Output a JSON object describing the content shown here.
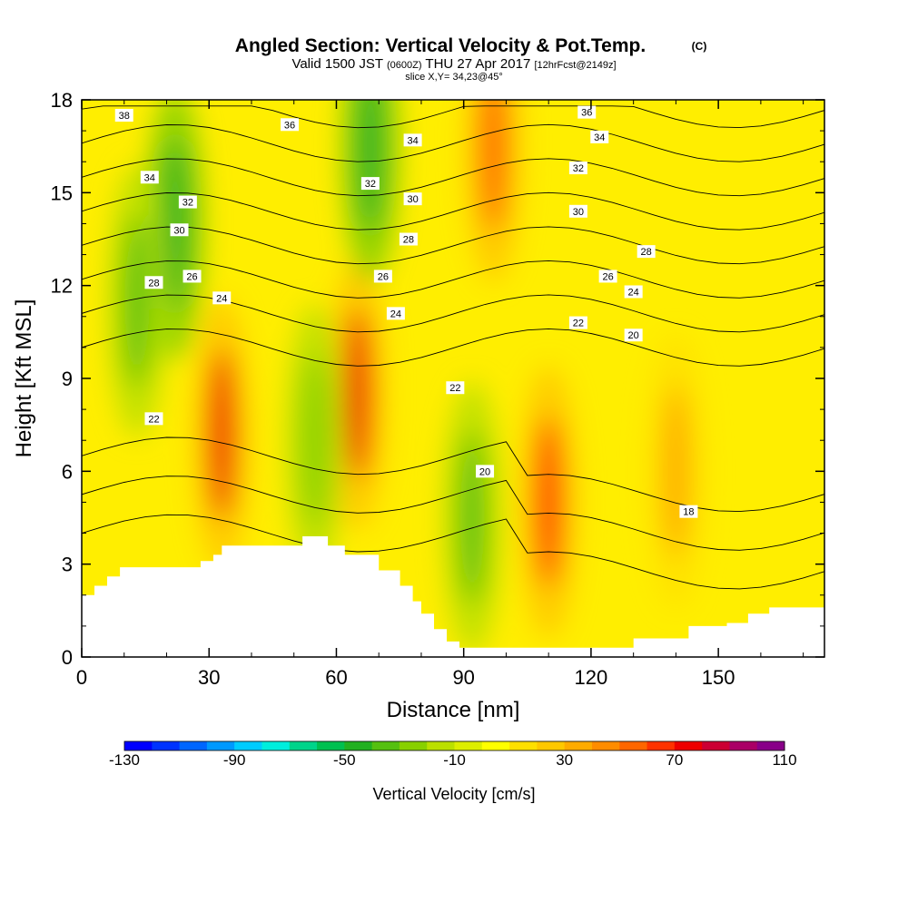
{
  "chart_data": {
    "type": "heatmap",
    "title": "Angled Section: Vertical Velocity & Pot.Temp.",
    "title_units": "(C)",
    "subtitle": {
      "prefix": "Valid 1500 JST",
      "utc": "(0600Z)",
      "date": "THU 27 Apr 2017",
      "forecast": "[12hrFcst@2149z]"
    },
    "slice_label": "slice X,Y= 34,23@45°",
    "xlabel": "Distance [nm]",
    "ylabel": "Height [Kft MSL]",
    "xlim": [
      0,
      175
    ],
    "ylim": [
      0,
      18
    ],
    "x_ticks": [
      0,
      30,
      60,
      90,
      120,
      150
    ],
    "y_ticks": [
      0,
      3,
      6,
      9,
      12,
      15,
      18
    ],
    "grid": false,
    "legend_position": "bottom",
    "colorbar": {
      "label": "Vertical Velocity [cm/s]",
      "min": -130,
      "max": 110,
      "step": 10,
      "tick_labels": [
        -130,
        -90,
        -50,
        -10,
        30,
        70,
        110
      ],
      "colors": [
        "#0000ff",
        "#0033ff",
        "#0066ff",
        "#0099ff",
        "#00ccff",
        "#00eedd",
        "#00d48a",
        "#00c050",
        "#22b020",
        "#55c010",
        "#88d000",
        "#bbe000",
        "#ddee00",
        "#ffff00",
        "#ffe000",
        "#ffc800",
        "#ffab00",
        "#ff8c00",
        "#ff6600",
        "#ff3300",
        "#ee0000",
        "#cc0033",
        "#aa0066",
        "#880088"
      ]
    },
    "vertical_velocity_cores": [
      {
        "x": 33,
        "z": 7.2,
        "w": 70
      },
      {
        "x": 65,
        "z": 8.5,
        "w": 70
      },
      {
        "x": 110,
        "z": 5.0,
        "w": 60
      },
      {
        "x": 97,
        "z": 16.5,
        "w": 50
      },
      {
        "x": 140,
        "z": 6.0,
        "w": 30
      },
      {
        "x": 22,
        "z": 14.0,
        "w": -45
      },
      {
        "x": 68,
        "z": 16.5,
        "w": -45
      },
      {
        "x": 92,
        "z": 4.5,
        "w": -40
      },
      {
        "x": 55,
        "z": 7.0,
        "w": -30
      },
      {
        "x": 13,
        "z": 11.5,
        "w": -40
      }
    ],
    "potential_temperature_labels": [
      {
        "x": 10,
        "z": 17.5,
        "text": "38"
      },
      {
        "x": 49,
        "z": 17.2,
        "text": "36"
      },
      {
        "x": 119,
        "z": 17.6,
        "text": "36"
      },
      {
        "x": 78,
        "z": 16.7,
        "text": "34"
      },
      {
        "x": 122,
        "z": 16.8,
        "text": "34"
      },
      {
        "x": 16,
        "z": 15.5,
        "text": "34"
      },
      {
        "x": 68,
        "z": 15.3,
        "text": "32"
      },
      {
        "x": 117,
        "z": 15.8,
        "text": "32"
      },
      {
        "x": 25,
        "z": 14.7,
        "text": "32"
      },
      {
        "x": 78,
        "z": 14.8,
        "text": "30"
      },
      {
        "x": 117,
        "z": 14.4,
        "text": "30"
      },
      {
        "x": 23,
        "z": 13.8,
        "text": "30"
      },
      {
        "x": 77,
        "z": 13.5,
        "text": "28"
      },
      {
        "x": 133,
        "z": 13.1,
        "text": "28"
      },
      {
        "x": 17,
        "z": 12.1,
        "text": "28"
      },
      {
        "x": 26,
        "z": 12.3,
        "text": "26"
      },
      {
        "x": 71,
        "z": 12.3,
        "text": "26"
      },
      {
        "x": 124,
        "z": 12.3,
        "text": "26"
      },
      {
        "x": 33,
        "z": 11.6,
        "text": "24"
      },
      {
        "x": 74,
        "z": 11.1,
        "text": "24"
      },
      {
        "x": 130,
        "z": 11.8,
        "text": "24"
      },
      {
        "x": 117,
        "z": 10.8,
        "text": "22"
      },
      {
        "x": 88,
        "z": 8.7,
        "text": "22"
      },
      {
        "x": 17,
        "z": 7.7,
        "text": "22"
      },
      {
        "x": 130,
        "z": 10.4,
        "text": "20"
      },
      {
        "x": 95,
        "z": 6.0,
        "text": "20"
      },
      {
        "x": 143,
        "z": 4.7,
        "text": "18"
      }
    ],
    "terrain": [
      [
        0,
        2
      ],
      [
        3,
        2
      ],
      [
        3,
        2.3
      ],
      [
        6,
        2.3
      ],
      [
        6,
        2.6
      ],
      [
        9,
        2.6
      ],
      [
        9,
        2.9
      ],
      [
        28,
        2.9
      ],
      [
        28,
        3.1
      ],
      [
        31,
        3.1
      ],
      [
        31,
        3.3
      ],
      [
        33,
        3.3
      ],
      [
        33,
        3.6
      ],
      [
        52,
        3.6
      ],
      [
        52,
        3.9
      ],
      [
        58,
        3.9
      ],
      [
        58,
        3.6
      ],
      [
        62,
        3.6
      ],
      [
        62,
        3.3
      ],
      [
        70,
        3.3
      ],
      [
        70,
        2.8
      ],
      [
        75,
        2.8
      ],
      [
        75,
        2.3
      ],
      [
        78,
        2.3
      ],
      [
        78,
        1.8
      ],
      [
        80,
        1.8
      ],
      [
        80,
        1.4
      ],
      [
        83,
        1.4
      ],
      [
        83,
        0.9
      ],
      [
        86,
        0.9
      ],
      [
        86,
        0.5
      ],
      [
        89,
        0.5
      ],
      [
        89,
        0.3
      ],
      [
        130,
        0.3
      ],
      [
        130,
        0.6
      ],
      [
        143,
        0.6
      ],
      [
        143,
        1.0
      ],
      [
        152,
        1.0
      ],
      [
        152,
        1.1
      ],
      [
        157,
        1.1
      ],
      [
        157,
        1.4
      ],
      [
        162,
        1.4
      ],
      [
        162,
        1.6
      ],
      [
        175,
        1.6
      ]
    ]
  }
}
